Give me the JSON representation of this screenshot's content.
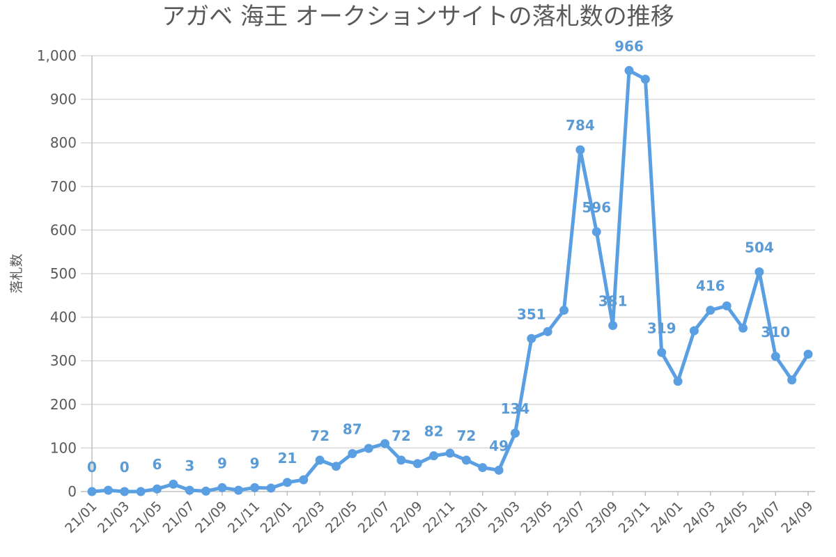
{
  "chart_data": {
    "type": "line",
    "title": "アガベ 海王 オークションサイトの落札数の推移",
    "xlabel": "",
    "ylabel": "落札数",
    "ylim": [
      0,
      1000
    ],
    "yticks": [
      0,
      100,
      200,
      300,
      400,
      500,
      600,
      700,
      800,
      900,
      1000
    ],
    "ytick_labels": [
      "0",
      "100",
      "200",
      "300",
      "400",
      "500",
      "600",
      "700",
      "800",
      "900",
      "1,000"
    ],
    "categories": [
      "21/01",
      "21/02",
      "21/03",
      "21/04",
      "21/05",
      "21/06",
      "21/07",
      "21/08",
      "21/09",
      "21/10",
      "21/11",
      "21/12",
      "22/01",
      "22/02",
      "22/03",
      "22/04",
      "22/05",
      "22/06",
      "22/07",
      "22/08",
      "22/09",
      "22/10",
      "22/11",
      "22/12",
      "23/01",
      "23/02",
      "23/03",
      "23/04",
      "23/05",
      "23/06",
      "23/07",
      "23/08",
      "23/09",
      "23/10",
      "23/11",
      "23/12",
      "24/01",
      "24/02",
      "24/03",
      "24/04",
      "24/05",
      "24/06",
      "24/07",
      "24/08",
      "24/09"
    ],
    "x_tick_labels": [
      "21/01",
      "21/03",
      "21/05",
      "21/07",
      "21/09",
      "21/11",
      "22/01",
      "22/03",
      "22/05",
      "22/07",
      "22/09",
      "22/11",
      "23/01",
      "23/03",
      "23/05",
      "23/07",
      "23/09",
      "23/11",
      "24/01",
      "24/03",
      "24/05",
      "24/07",
      "24/09"
    ],
    "series": [
      {
        "name": "落札数",
        "color": "#5b9fe3",
        "values": [
          0,
          3,
          0,
          0,
          6,
          17,
          3,
          1,
          9,
          3,
          9,
          8,
          21,
          27,
          72,
          58,
          87,
          99,
          110,
          72,
          64,
          82,
          88,
          72,
          55,
          49,
          134,
          351,
          367,
          416,
          784,
          596,
          381,
          966,
          946,
          319,
          253,
          369,
          416,
          426,
          375,
          504,
          310,
          256,
          315
        ]
      }
    ],
    "data_labels": [
      {
        "index": 0,
        "text": "0"
      },
      {
        "index": 2,
        "text": "0"
      },
      {
        "index": 4,
        "text": "6"
      },
      {
        "index": 6,
        "text": "3"
      },
      {
        "index": 8,
        "text": "9"
      },
      {
        "index": 10,
        "text": "9"
      },
      {
        "index": 12,
        "text": "21"
      },
      {
        "index": 14,
        "text": "72"
      },
      {
        "index": 16,
        "text": "87"
      },
      {
        "index": 19,
        "text": "72"
      },
      {
        "index": 21,
        "text": "82"
      },
      {
        "index": 23,
        "text": "72"
      },
      {
        "index": 25,
        "text": "49"
      },
      {
        "index": 26,
        "text": "134"
      },
      {
        "index": 27,
        "text": "351"
      },
      {
        "index": 30,
        "text": "784"
      },
      {
        "index": 31,
        "text": "596"
      },
      {
        "index": 32,
        "text": "381"
      },
      {
        "index": 33,
        "text": "966"
      },
      {
        "index": 35,
        "text": "319"
      },
      {
        "index": 38,
        "text": "416"
      },
      {
        "index": 41,
        "text": "504"
      },
      {
        "index": 42,
        "text": "310"
      }
    ]
  }
}
